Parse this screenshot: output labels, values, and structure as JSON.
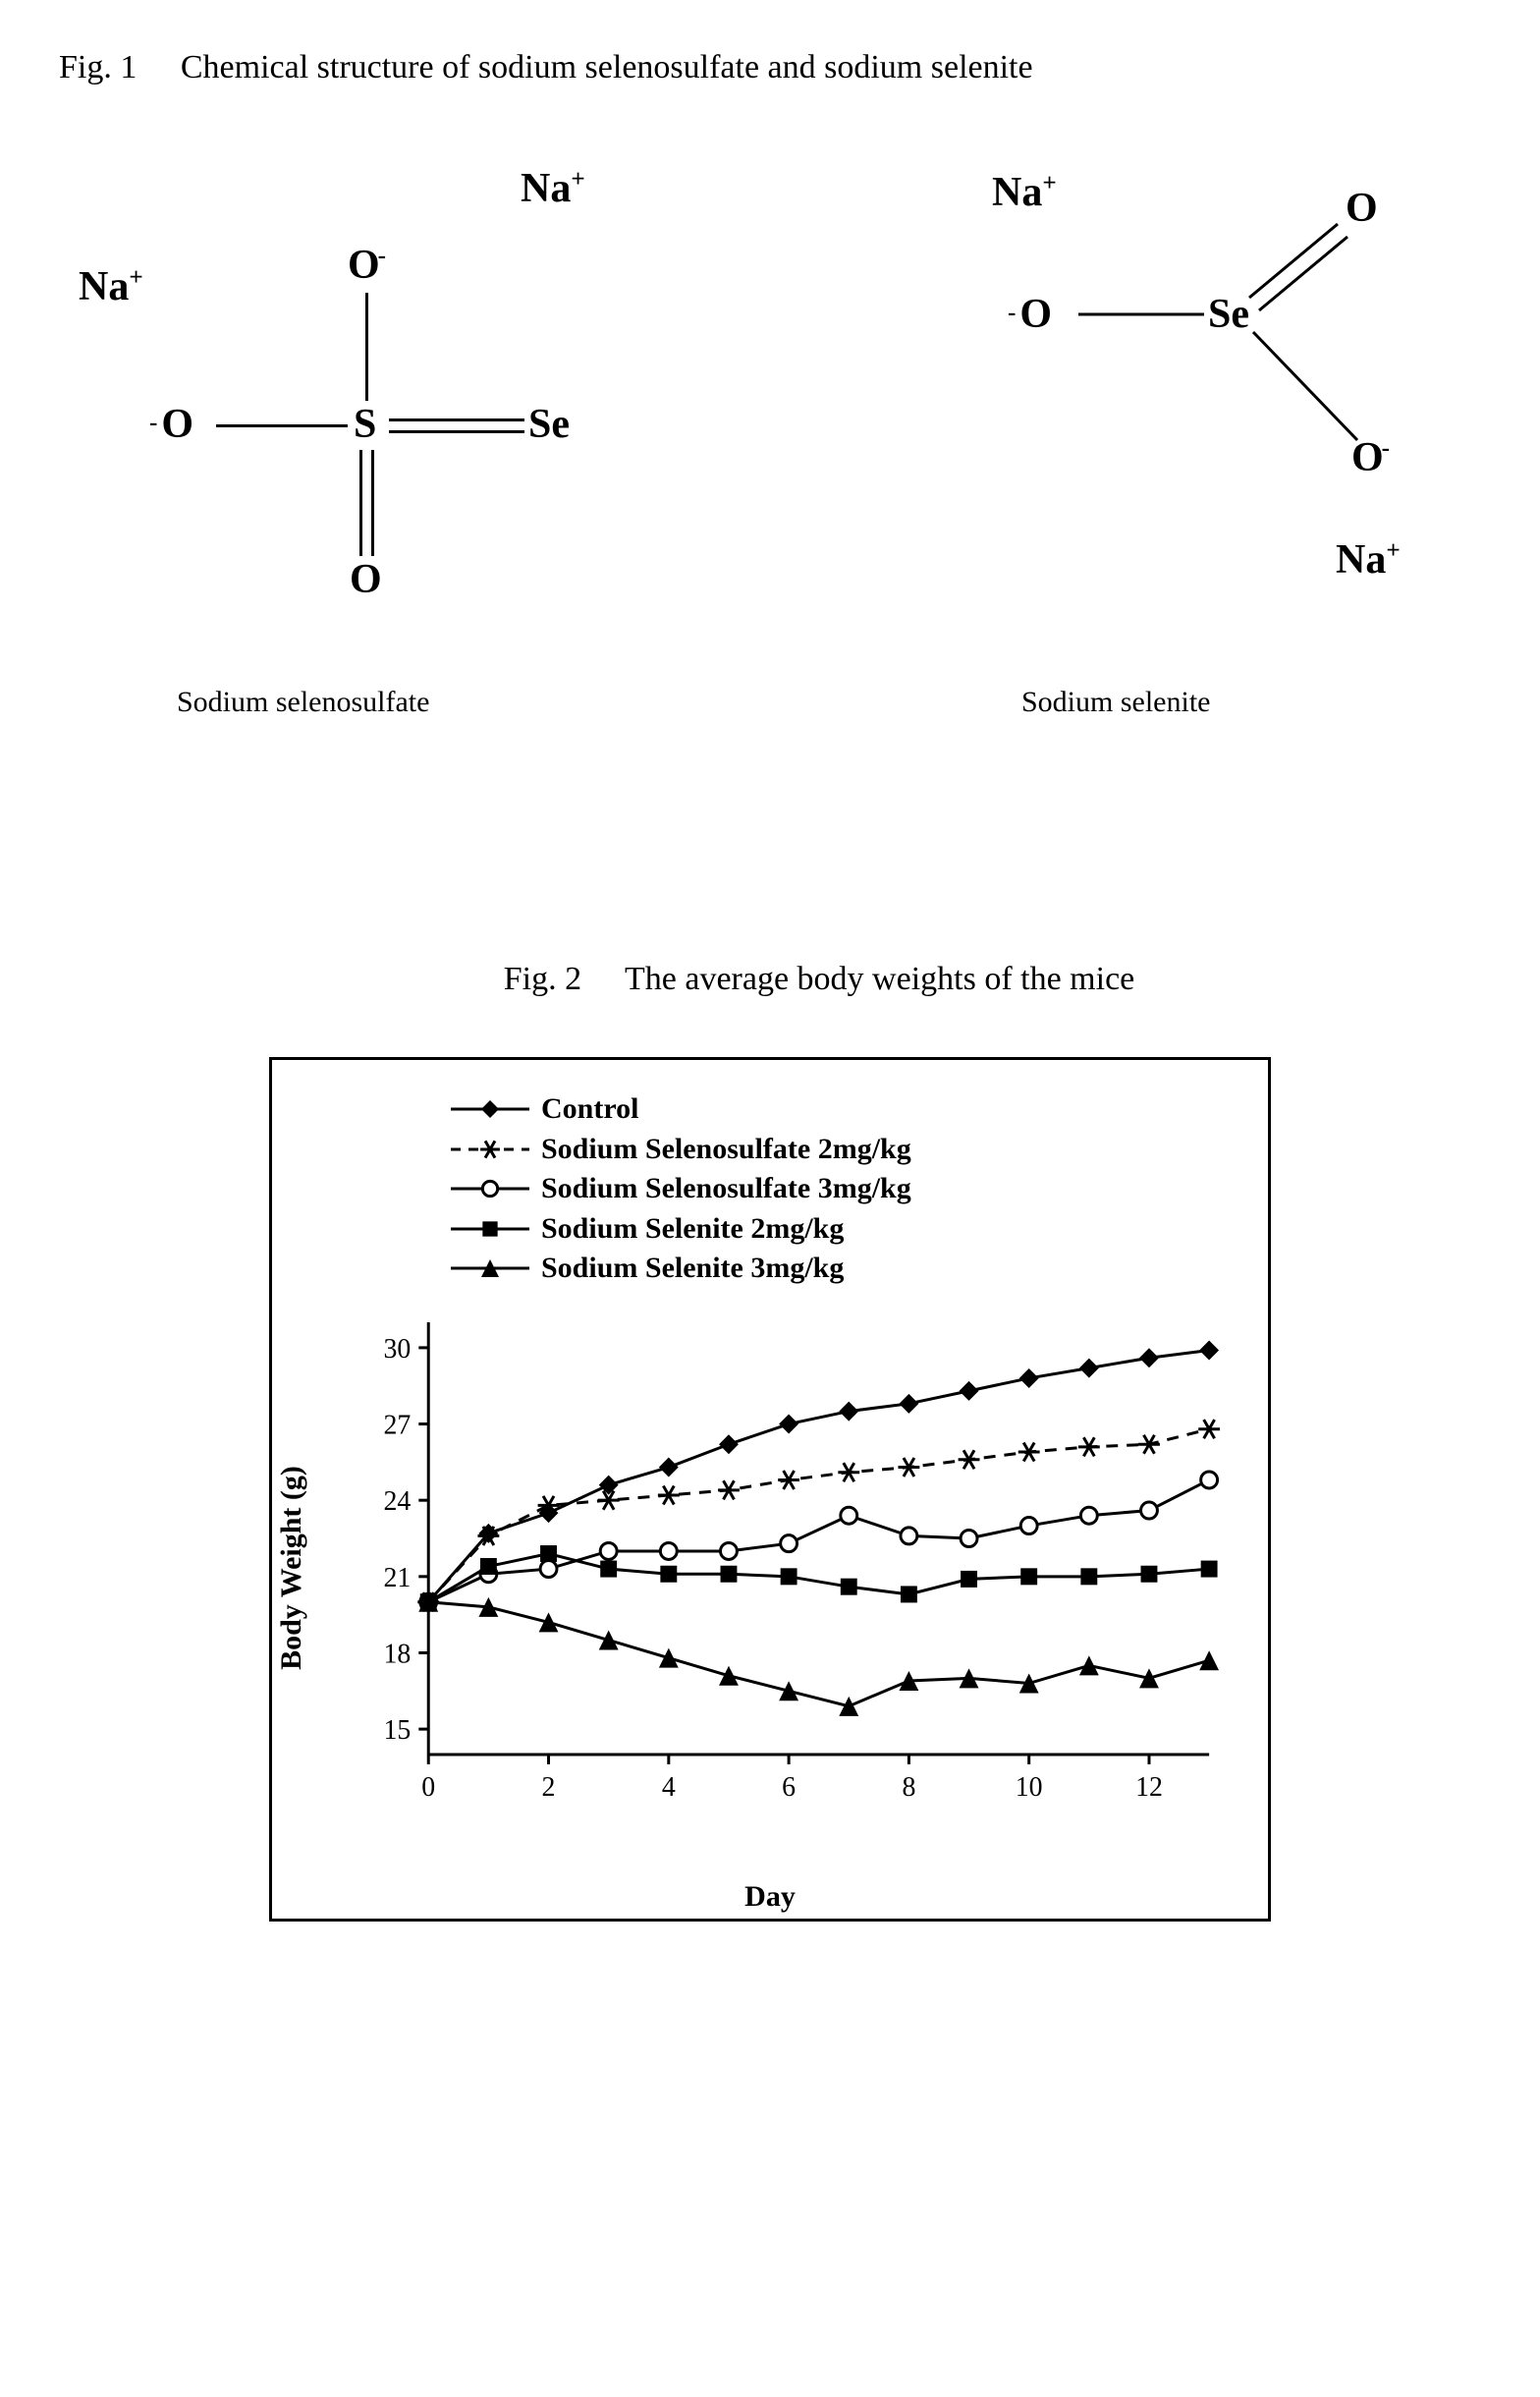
{
  "figure1": {
    "caption_prefix": "Fig. 1",
    "caption_text": "Chemical structure of sodium selenosulfate and sodium selenite",
    "left_label": "Sodium selenosulfate",
    "right_label": "Sodium selenite",
    "colors": {
      "line": "#000000",
      "text": "#000000"
    }
  },
  "figure2": {
    "caption_prefix": "Fig. 2",
    "caption_text": "The average body weights of the mice",
    "chart": {
      "type": "line",
      "x_label": "Day",
      "y_label": "Body Weight (g)",
      "x_ticks": [
        0,
        2,
        4,
        6,
        8,
        10,
        12
      ],
      "y_ticks": [
        15,
        18,
        21,
        24,
        27,
        30
      ],
      "xlim": [
        0,
        13
      ],
      "ylim": [
        14,
        31
      ],
      "line_width": 3,
      "marker_size": 10,
      "axis_color": "#000000",
      "background_color": "#ffffff",
      "label_fontsize": 30,
      "tick_fontsize": 28,
      "series": [
        {
          "name": "Control",
          "marker": "diamond-filled",
          "dash": "solid",
          "color": "#000000",
          "x": [
            0,
            1,
            2,
            3,
            4,
            5,
            6,
            7,
            8,
            9,
            10,
            11,
            12,
            13
          ],
          "y": [
            20.0,
            22.7,
            23.5,
            24.6,
            25.3,
            26.2,
            27.0,
            27.5,
            27.8,
            28.3,
            28.8,
            29.2,
            29.6,
            29.9
          ]
        },
        {
          "name": "Sodium Selenosulfate 2mg/kg",
          "marker": "asterisk",
          "dash": "dashed",
          "color": "#000000",
          "x": [
            0,
            1,
            2,
            3,
            4,
            5,
            6,
            7,
            8,
            9,
            10,
            11,
            12,
            13
          ],
          "y": [
            20.0,
            22.6,
            23.8,
            24.0,
            24.2,
            24.4,
            24.8,
            25.1,
            25.3,
            25.6,
            25.9,
            26.1,
            26.2,
            26.8
          ]
        },
        {
          "name": "Sodium Selenosulfate 3mg/kg",
          "marker": "circle-open",
          "dash": "solid",
          "color": "#000000",
          "x": [
            0,
            1,
            2,
            3,
            4,
            5,
            6,
            7,
            8,
            9,
            10,
            11,
            12,
            13
          ],
          "y": [
            20.0,
            21.1,
            21.3,
            22.0,
            22.0,
            22.0,
            22.3,
            23.4,
            22.6,
            22.5,
            23.0,
            23.4,
            23.6,
            24.8
          ]
        },
        {
          "name": "Sodium Selenite 2mg/kg",
          "marker": "square-filled",
          "dash": "solid",
          "color": "#000000",
          "x": [
            0,
            1,
            2,
            3,
            4,
            5,
            6,
            7,
            8,
            9,
            10,
            11,
            12,
            13
          ],
          "y": [
            20.0,
            21.4,
            21.9,
            21.3,
            21.1,
            21.1,
            21.0,
            20.6,
            20.3,
            20.9,
            21.0,
            21.0,
            21.1,
            21.3
          ]
        },
        {
          "name": "Sodium Selenite 3mg/kg",
          "marker": "triangle-filled",
          "dash": "solid",
          "color": "#000000",
          "x": [
            0,
            1,
            2,
            3,
            4,
            5,
            6,
            7,
            8,
            9,
            10,
            11,
            12,
            13
          ],
          "y": [
            20.0,
            19.8,
            19.2,
            18.5,
            17.8,
            17.1,
            16.5,
            15.9,
            16.9,
            17.0,
            16.8,
            17.5,
            17.0,
            17.7
          ]
        }
      ]
    }
  }
}
